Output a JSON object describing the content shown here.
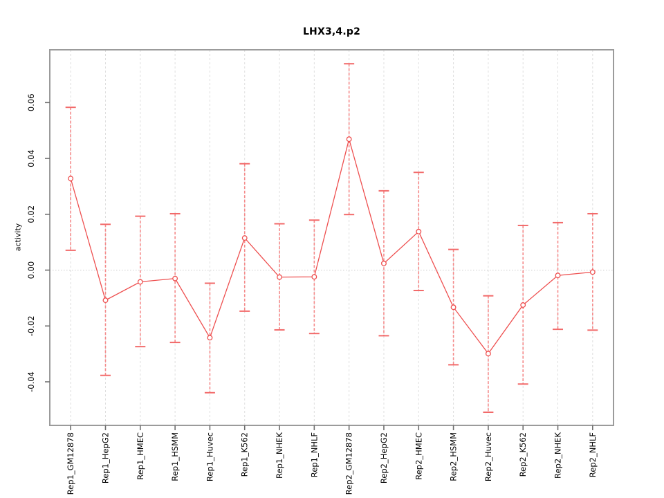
{
  "title": "LHX3,4.p2",
  "chart_data": {
    "type": "scatter",
    "subtype": "points-with-error-bars-connected-by-line",
    "title": "LHX3,4.p2",
    "xlabel": "",
    "ylabel": "activity",
    "categories": [
      "Rep1_GM12878",
      "Rep1_HepG2",
      "Rep1_HMEC",
      "Rep1_HSMM",
      "Rep1_Huvec",
      "Rep1_K562",
      "Rep1_NHEK",
      "Rep1_NHLF",
      "Rep2_GM12878",
      "Rep2_HepG2",
      "Rep2_HMEC",
      "Rep2_HSMM",
      "Rep2_Huvec",
      "Rep2_K562",
      "Rep2_NHEK",
      "Rep2_NHLF"
    ],
    "series": [
      {
        "name": "activity",
        "values": [
          0.0328,
          -0.0108,
          -0.0042,
          -0.003,
          -0.0242,
          0.0115,
          -0.0025,
          -0.0024,
          0.0469,
          0.0024,
          0.0138,
          -0.0133,
          -0.0299,
          -0.0125,
          -0.0019,
          -0.0007
        ],
        "upper": [
          0.0583,
          0.0164,
          0.0193,
          0.0202,
          -0.0047,
          0.0381,
          0.0166,
          0.0179,
          0.0739,
          0.0284,
          0.035,
          0.0074,
          -0.0092,
          0.016,
          0.017,
          0.0202
        ],
        "lower": [
          0.0071,
          -0.0377,
          -0.0274,
          -0.0259,
          -0.0439,
          -0.0147,
          -0.0214,
          -0.0227,
          0.0199,
          -0.0235,
          -0.0073,
          -0.0339,
          -0.0509,
          -0.0408,
          -0.0212,
          -0.0215
        ]
      }
    ],
    "ylim": [
      -0.0556,
      0.0789
    ],
    "yticks": {
      "values": [
        0.06,
        0.04,
        0.02,
        0.0,
        -0.02,
        -0.04
      ],
      "labels": [
        "0.06",
        "0.04",
        "0.02",
        "0.00",
        "-0.02",
        "-0.04"
      ]
    },
    "grid": {
      "vertical": "dashed-at-each-category",
      "horizontal": "dotted-at-zero-only"
    },
    "legend": "none",
    "colors": {
      "series_red": "#ee4f4f",
      "error_bar_red": "#f58a8a",
      "cap_red": "#f26a6a",
      "axis_gray": "#9b9b9b",
      "tick_gray": "#6e6e6e",
      "grid_gray": "#dedede",
      "zero_line_gray": "#c9c9c9",
      "background": "#ffffff"
    }
  }
}
